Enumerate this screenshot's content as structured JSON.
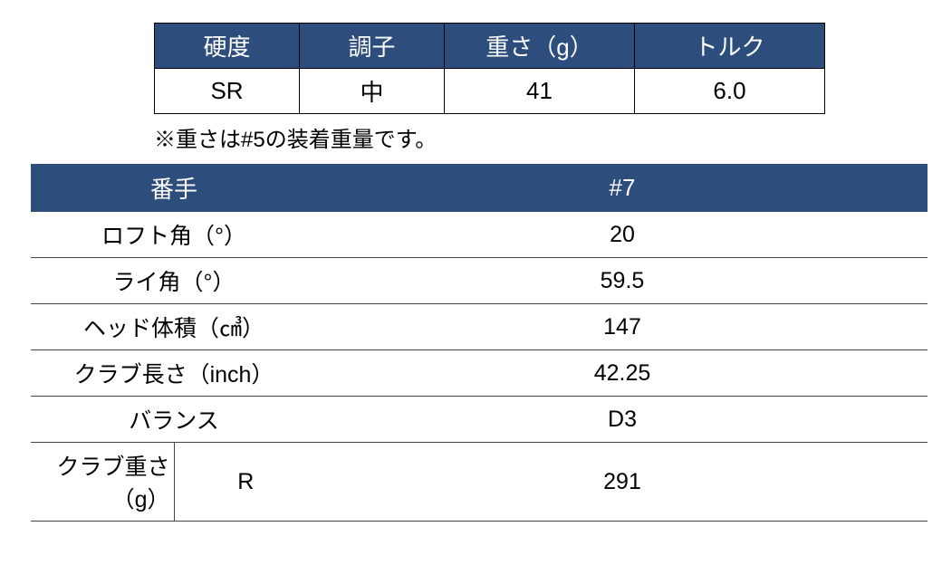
{
  "topTable": {
    "columns": [
      "硬度",
      "調子",
      "重さ（g）",
      "トルク"
    ],
    "row": [
      "SR",
      "中",
      "41",
      "6.0"
    ],
    "colWidths": [
      "160px",
      "160px",
      "210px",
      "210px"
    ],
    "headerBg": "#2d4e7d",
    "headerColor": "#ffffff",
    "borderColor": "#000000"
  },
  "note": "※重さは#5の装着重量です。",
  "bottomTable": {
    "headers": [
      "番手",
      "#7"
    ],
    "rows": [
      {
        "label": "ロフト角（°）",
        "sub": "",
        "value": "20",
        "hasSub": false
      },
      {
        "label": "ライ角（°）",
        "sub": "",
        "value": "59.5",
        "hasSub": false
      },
      {
        "label": "ヘッド体積（㎤）",
        "sub": "",
        "value": "147",
        "hasSub": false
      },
      {
        "label": "クラブ長さ（inch）",
        "sub": "",
        "value": "42.25",
        "hasSub": false
      },
      {
        "label": "バランス",
        "sub": "",
        "value": "D3",
        "hasSub": false
      },
      {
        "label": "クラブ重さ（g）",
        "sub": "R",
        "value": "291",
        "hasSub": true
      }
    ],
    "headerBg": "#2d4e7d",
    "headerColor": "#ffffff",
    "rowBorderColor": "#444444",
    "labelColWidth": "280px",
    "subColWidth": "36px"
  }
}
